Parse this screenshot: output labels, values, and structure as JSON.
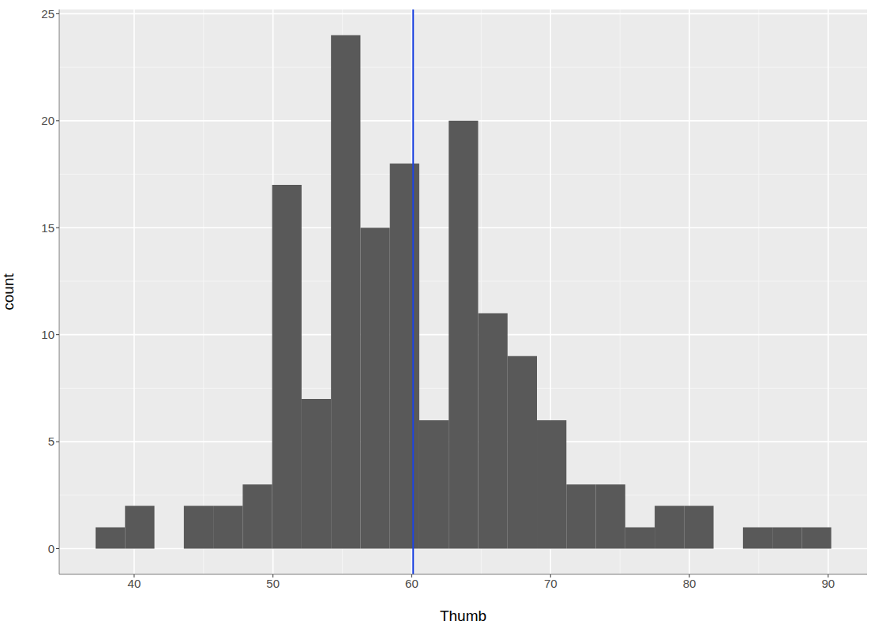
{
  "chart_data": {
    "type": "histogram",
    "x_label": "Thumb",
    "y_label": "count",
    "bins": [
      37.22,
      39.34,
      41.46,
      43.58,
      45.7,
      47.82,
      49.94,
      52.06,
      54.18,
      56.3,
      58.42,
      60.54,
      62.66,
      64.78,
      66.9,
      69.02,
      71.14,
      73.26,
      75.38,
      77.5,
      79.62,
      81.74,
      83.86,
      85.98,
      88.1,
      90.22
    ],
    "counts": [
      1,
      2,
      0,
      2,
      2,
      3,
      17,
      7,
      24,
      15,
      18,
      6,
      20,
      11,
      9,
      6,
      3,
      3,
      1,
      2,
      2,
      0,
      1,
      1,
      1
    ],
    "color": "#595959",
    "xlim": [
      34.6,
      92.8
    ],
    "ylim": [
      -1.2,
      25.2
    ],
    "xticks": [
      40,
      50,
      60,
      70,
      80,
      90
    ],
    "yticks": [
      0,
      5,
      10,
      15,
      20,
      25
    ],
    "grid": true,
    "vline": {
      "value": 60.1,
      "color": "#1f45e0"
    }
  }
}
